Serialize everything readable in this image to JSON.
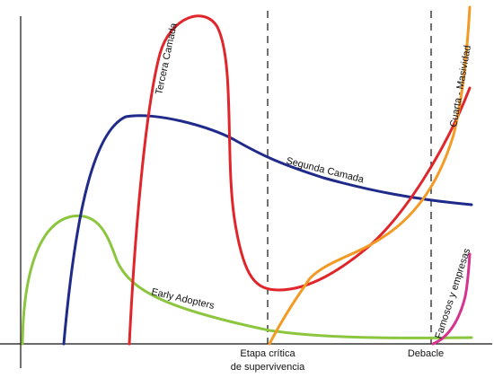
{
  "labels": {
    "tercera": "Tercera Camada",
    "segunda": "Segunda Camada",
    "early": "Early Adopters",
    "cuarta": "Cuarta - Masividad",
    "famosos": "Famosos y empresas",
    "etapa_line1": "Etapa crítica",
    "etapa_line2": "de supervivencia",
    "debacle": "Debacle"
  },
  "colors": {
    "early_adopters": "#8cc63f",
    "segunda_camada": "#1f2a8a",
    "tercera_camada": "#e0262b",
    "cuarta_masividad": "#f39a24",
    "famosos_empresas": "#d6338f",
    "axis": "#111111"
  }
}
